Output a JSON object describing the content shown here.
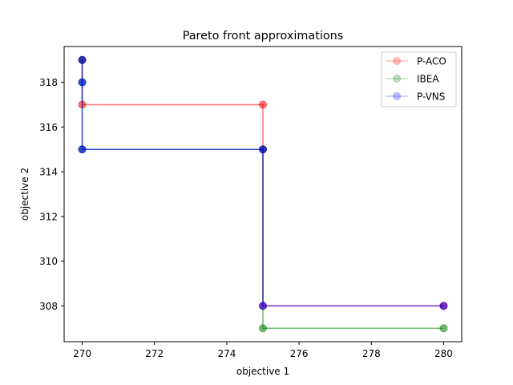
{
  "chart_data": {
    "type": "line",
    "title": "Pareto front approximations",
    "xlabel": "objective 1",
    "ylabel": "objective 2",
    "xlim": [
      269.5,
      280.5
    ],
    "ylim": [
      306.4,
      319.6
    ],
    "xticks": [
      270,
      272,
      274,
      276,
      278,
      280
    ],
    "yticks": [
      308,
      310,
      312,
      314,
      316,
      318
    ],
    "step": "post",
    "grid": false,
    "legend_position": "upper right",
    "series": [
      {
        "name": "P-ACO",
        "color": "#ff0000",
        "points": [
          [
            270,
            319
          ],
          [
            270,
            317
          ],
          [
            275,
            317
          ],
          [
            275,
            315
          ],
          [
            275,
            308
          ],
          [
            280,
            308
          ]
        ]
      },
      {
        "name": "IBEA",
        "color": "#008000",
        "points": [
          [
            270,
            319
          ],
          [
            270,
            318
          ],
          [
            270,
            315
          ],
          [
            275,
            315
          ],
          [
            275,
            307
          ],
          [
            280,
            307
          ]
        ]
      },
      {
        "name": "P-VNS",
        "color": "#0000ff",
        "points": [
          [
            270,
            319
          ],
          [
            270,
            318
          ],
          [
            270,
            315
          ],
          [
            275,
            315
          ],
          [
            275,
            308
          ],
          [
            280,
            308
          ]
        ]
      }
    ]
  }
}
